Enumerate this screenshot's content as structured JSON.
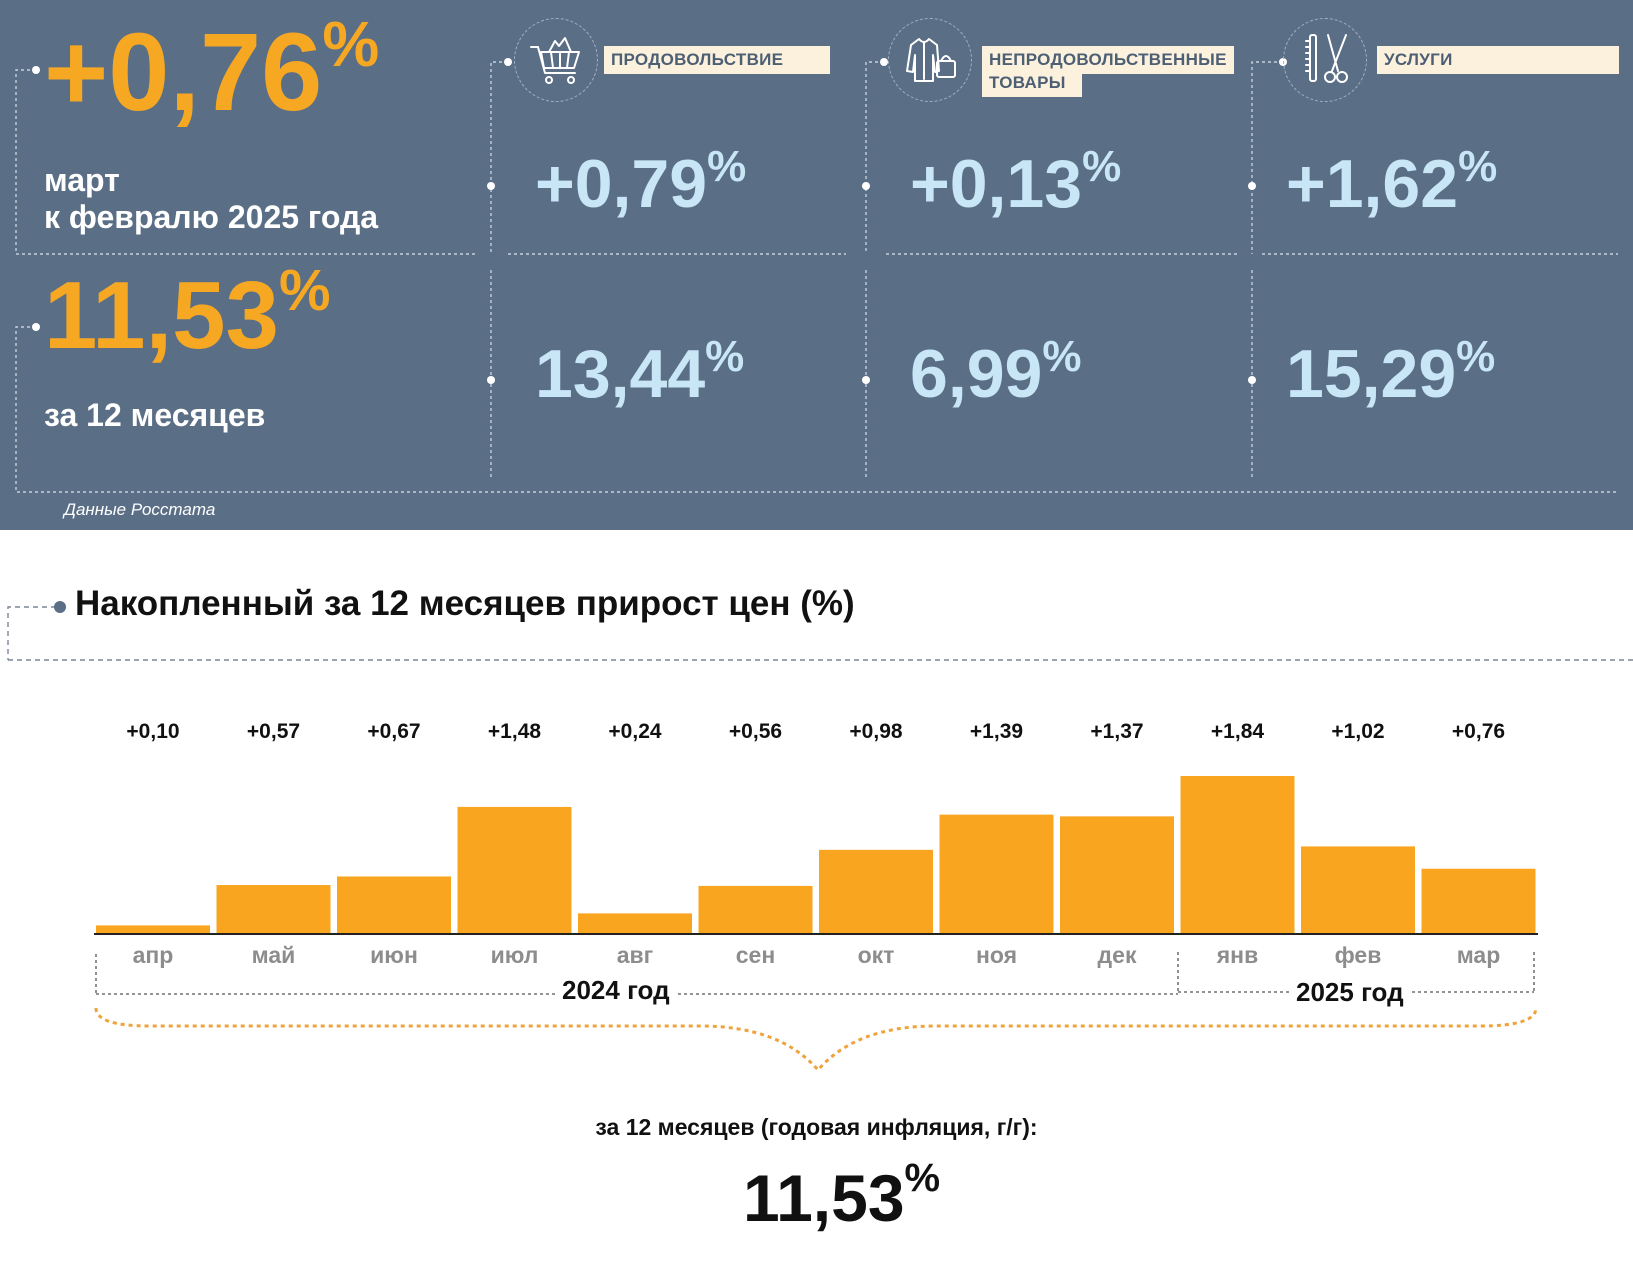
{
  "colors": {
    "panel": "#5a6e85",
    "accent_orange": "#f7a823",
    "light_blue": "#c8e6f5",
    "bar": "#f9a51f",
    "tag_bg": "#fbf1dc"
  },
  "monthly": {
    "value": "+0,76",
    "percent_sign": "%",
    "line1": "март",
    "line2": "к февралю 2025 года"
  },
  "annual": {
    "value": "11,53",
    "percent_sign": "%",
    "label": "за 12 месяцев"
  },
  "categories": [
    {
      "tag_line1": "ПРОДОВОЛЬСТВИЕ",
      "tag_line2": "",
      "icon": "shopping-cart-icon",
      "monthly": "+0,79",
      "annual": "13,44"
    },
    {
      "tag_line1": "НЕПРОДОВОЛЬСТВЕННЫЕ",
      "tag_line2": "ТОВАРЫ",
      "icon": "clothes-bag-icon",
      "monthly": "+0,13",
      "annual": "6,99"
    },
    {
      "tag_line1": "УСЛУГИ",
      "tag_line2": "",
      "icon": "comb-scissors-icon",
      "monthly": "+1,62",
      "annual": "15,29"
    }
  ],
  "source": "Данные Росстата",
  "chart_title": "Накопленный за 12 месяцев прирост цен (%)",
  "chart_data": {
    "type": "bar",
    "title": "Накопленный за 12 месяцев прирост цен (%)",
    "categories": [
      "апр",
      "май",
      "июн",
      "июл",
      "авг",
      "сен",
      "окт",
      "ноя",
      "дек",
      "янв",
      "фев",
      "мар"
    ],
    "values": [
      0.1,
      0.57,
      0.67,
      1.48,
      0.24,
      0.56,
      0.98,
      1.39,
      1.37,
      1.84,
      1.02,
      0.76
    ],
    "data_labels": [
      "+0,10",
      "+0,57",
      "+0,67",
      "+1,48",
      "+0,24",
      "+0,56",
      "+0,98",
      "+1,39",
      "+1,37",
      "+1,84",
      "+1,02",
      "+0,76"
    ],
    "groups": [
      {
        "label": "2024 год",
        "from": "апр",
        "to": "дек"
      },
      {
        "label": "2025 год",
        "from": "янв",
        "to": "мар"
      }
    ],
    "xlabel": "",
    "ylabel": "",
    "grid": false,
    "legend": "none"
  },
  "footer": {
    "label": "за 12 месяцев (годовая инфляция, г/г):",
    "value": "11,53",
    "percent_sign": "%"
  }
}
